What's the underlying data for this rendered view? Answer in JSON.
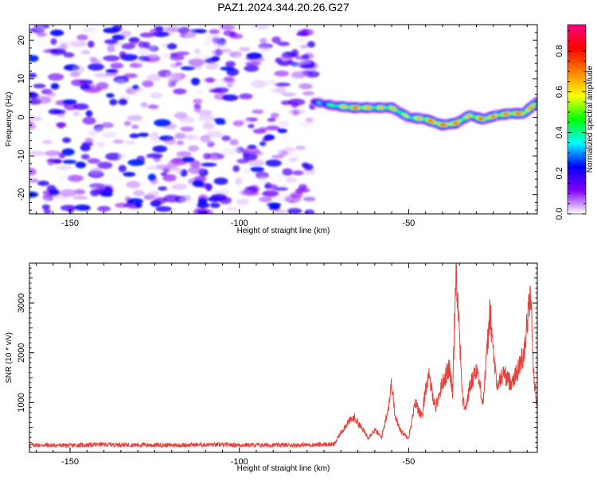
{
  "title": "PAZ1.2024.344.20.26.G27",
  "chart_data": [
    {
      "type": "heatmap",
      "xlabel": "Height of straight line (km)",
      "ylabel": "Frequency (Hz)",
      "xlim": [
        -162,
        -12
      ],
      "ylim": [
        -25,
        24
      ],
      "xticks": [
        -150,
        -100,
        -50
      ],
      "yticks": [
        20,
        10,
        0,
        -10,
        -20
      ],
      "colorbar": {
        "label": "Normalized spectral amplitude",
        "range": [
          0,
          0.93
        ],
        "ticks": [
          "0.0",
          "0.2",
          "0.4",
          "0.6",
          "0.8"
        ],
        "tick_values": [
          0,
          0.2,
          0.4,
          0.6,
          0.8
        ],
        "colors": [
          "#ffffff",
          "#8000ff",
          "#0000ff",
          "#00ffff",
          "#00ff00",
          "#ffff00",
          "#ff8000",
          "#ff0000",
          "#ff0080"
        ]
      },
      "noise_region": {
        "x": [
          -162,
          -78
        ],
        "frequency": [
          -25,
          24
        ],
        "amplitude": [
          0.0,
          0.25
        ]
      },
      "signal_ridge": {
        "x": [
          -78,
          -72,
          -66,
          -60,
          -55,
          -50,
          -45,
          -40,
          -36,
          -32,
          -28,
          -24,
          -20,
          -16,
          -12
        ],
        "frequency": [
          4,
          3,
          2.5,
          2.5,
          2.5,
          0,
          -0.5,
          -2,
          -1.5,
          0.5,
          -0.5,
          0.5,
          1,
          1,
          4
        ],
        "amplitude": [
          0.3,
          0.55,
          0.9,
          0.7,
          0.75,
          0.6,
          0.85,
          0.9,
          0.85,
          0.7,
          0.9,
          0.8,
          0.85,
          0.9,
          0.7
        ]
      }
    },
    {
      "type": "line",
      "xlabel": "Height of straight line (km)",
      "ylabel": "SNR (10 * v/v)",
      "xlim": [
        -162,
        -12
      ],
      "ylim": [
        0,
        3800
      ],
      "xticks": [
        -150,
        -100,
        -50
      ],
      "yticks": [
        1000,
        2000,
        3000
      ],
      "color": "#e8403a",
      "x": [
        -162,
        -150,
        -140,
        -130,
        -120,
        -110,
        -100,
        -90,
        -80,
        -72,
        -70,
        -68,
        -66,
        -64,
        -62,
        -60,
        -58,
        -56,
        -55,
        -54,
        -52,
        -50,
        -48,
        -46,
        -45,
        -44,
        -42,
        -40,
        -38,
        -37,
        -36,
        -34,
        -33,
        -32,
        -30,
        -28,
        -26,
        -24,
        -22,
        -20,
        -18,
        -16,
        -14,
        -13,
        -12
      ],
      "y": [
        150,
        140,
        160,
        150,
        145,
        155,
        150,
        145,
        150,
        160,
        400,
        600,
        700,
        500,
        300,
        450,
        300,
        900,
        1400,
        700,
        400,
        300,
        1000,
        700,
        1300,
        1500,
        900,
        1400,
        1700,
        1200,
        3800,
        1000,
        900,
        1300,
        1700,
        1000,
        2800,
        1300,
        1600,
        1400,
        1600,
        2000,
        3200,
        1500,
        900
      ]
    }
  ]
}
